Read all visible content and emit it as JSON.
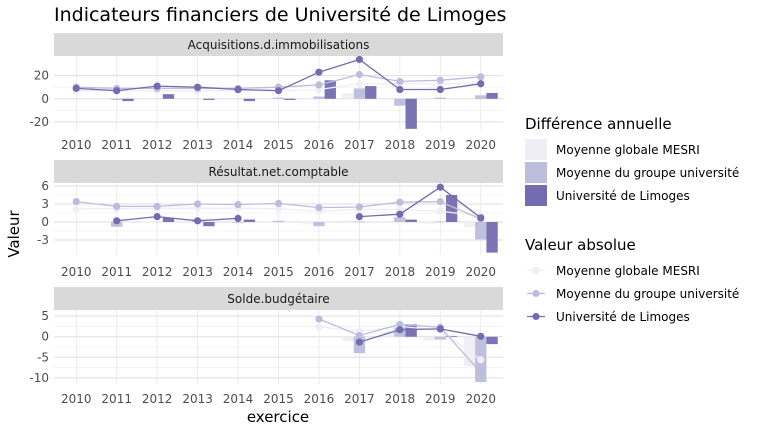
{
  "chart_data": {
    "type": "line",
    "title": "Indicateurs financiers de Université de Limoges",
    "xlabel": "exercice",
    "ylabel": "Valeur",
    "x": [
      2010,
      2011,
      2012,
      2013,
      2014,
      2015,
      2016,
      2017,
      2018,
      2019,
      2020
    ],
    "legend_bar_title": "Différence annuelle",
    "legend_line_title": "Valeur absolue",
    "series_names": [
      "Moyenne globale MESRI",
      "Moyenne du groupe université",
      "Université de Limoges"
    ],
    "colors": [
      "#efedf5",
      "#bcbddc",
      "#756bb1"
    ],
    "grid": true,
    "legend_position": "right",
    "panels": [
      {
        "name": "Acquisitions.d.immobilisations",
        "ylim": [
          -27,
          37
        ],
        "yticks": [
          -20,
          0,
          20
        ],
        "ytick_labels": [
          "-20",
          "0",
          "20"
        ],
        "lines": [
          [
            7,
            7,
            7,
            7,
            7,
            7,
            8,
            13,
            13,
            13,
            13
          ],
          [
            10,
            9,
            9,
            9,
            9,
            10,
            12,
            21,
            15,
            16,
            19
          ],
          [
            9,
            7,
            11,
            10,
            8,
            7,
            23,
            34,
            8,
            8,
            13
          ]
        ],
        "diffs": [
          [
            null,
            0,
            0,
            0,
            0,
            0,
            1,
            5,
            0,
            0,
            0
          ],
          [
            null,
            -1,
            0,
            0,
            0,
            1,
            2,
            9,
            -6,
            1,
            3
          ],
          [
            null,
            -2,
            4,
            -1,
            -2,
            -1,
            16,
            11,
            -26,
            0,
            5
          ]
        ]
      },
      {
        "name": "Résultat.net.comptable",
        "ylim": [
          -5.5,
          6.5
        ],
        "yticks": [
          -3,
          0,
          3,
          6
        ],
        "ytick_labels": [
          "-3",
          "0",
          "3",
          "6"
        ],
        "lines": [
          [
            2.2,
            2.2,
            2.3,
            2.3,
            2.3,
            2.2,
            1.8,
            2.1,
            2.1,
            1.8,
            1.0
          ],
          [
            3.4,
            2.6,
            2.6,
            3.0,
            2.9,
            3.1,
            2.4,
            2.5,
            3.3,
            3.4,
            0.5
          ],
          [
            null,
            0.2,
            0.9,
            0.2,
            0.6,
            null,
            null,
            0.9,
            1.3,
            5.8,
            0.7
          ]
        ],
        "diffs": [
          [
            null,
            0,
            0.1,
            0,
            0,
            -0.1,
            -0.4,
            0.3,
            0,
            -0.3,
            -0.8
          ],
          [
            null,
            -0.8,
            0,
            0.4,
            -0.1,
            0.2,
            -0.7,
            0.1,
            0.8,
            0.1,
            -2.9
          ],
          [
            null,
            null,
            0.7,
            -0.7,
            0.4,
            null,
            null,
            null,
            0.4,
            4.5,
            -5.1
          ]
        ]
      },
      {
        "name": "Solde.budgétaire",
        "ylim": [
          -11.5,
          6.5
        ],
        "yticks": [
          -10,
          -5,
          0,
          5
        ],
        "ytick_labels": [
          "-10",
          "-5",
          "0",
          "5"
        ],
        "lines": [
          [
            null,
            null,
            null,
            null,
            null,
            null,
            2.4,
            1.3,
            2.5,
            1.6,
            -5.6
          ],
          [
            null,
            null,
            null,
            null,
            null,
            null,
            4.3,
            0.3,
            3.0,
            2.3,
            -8.7
          ],
          [
            null,
            null,
            null,
            null,
            null,
            null,
            null,
            -1.3,
            1.7,
            1.9,
            0.1
          ]
        ],
        "diffs": [
          [
            null,
            null,
            null,
            null,
            null,
            null,
            null,
            -1.1,
            1.2,
            -0.9,
            -7.2
          ],
          [
            null,
            null,
            null,
            null,
            null,
            null,
            null,
            -4.0,
            2.7,
            -0.7,
            -11.0
          ],
          [
            null,
            null,
            null,
            null,
            null,
            null,
            null,
            null,
            3.0,
            0.2,
            -1.8
          ]
        ]
      }
    ]
  }
}
